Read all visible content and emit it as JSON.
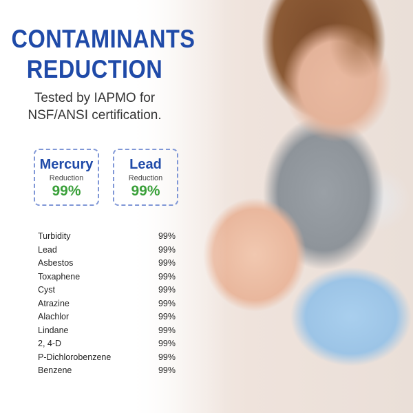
{
  "title_line1": "CONTAMINANTS",
  "title_line2": "REDUCTION",
  "subtitle_line1": "Tested by IAPMO for",
  "subtitle_line2": "NSF/ANSI certification.",
  "highlights": [
    {
      "name": "Mercury",
      "label": "Reduction",
      "value": "99%"
    },
    {
      "name": "Lead",
      "label": "Reduction",
      "value": "99%"
    }
  ],
  "contaminants": [
    {
      "name": "Turbidity",
      "value": "99%"
    },
    {
      "name": "Lead",
      "value": "99%"
    },
    {
      "name": "Asbestos",
      "value": "99%"
    },
    {
      "name": "Toxaphene",
      "value": "99%"
    },
    {
      "name": "Cyst",
      "value": "99%"
    },
    {
      "name": "Atrazine",
      "value": "99%"
    },
    {
      "name": "Alachlor",
      "value": "99%"
    },
    {
      "name": "Lindane",
      "value": "99%"
    },
    {
      "name": "2, 4-D",
      "value": "99%"
    },
    {
      "name": "P-Dichlorobenzene",
      "value": "99%"
    },
    {
      "name": "Benzene",
      "value": "99%"
    }
  ],
  "colors": {
    "title": "#1f4aa8",
    "percent": "#3aa03a",
    "border": "#7f96d6"
  }
}
